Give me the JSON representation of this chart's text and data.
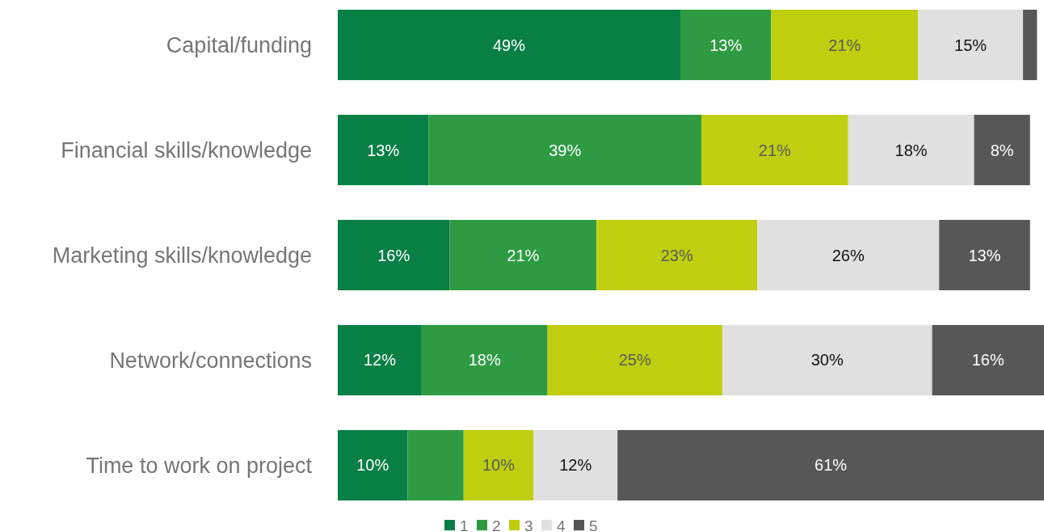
{
  "chart_data": {
    "type": "bar",
    "orientation": "horizontal",
    "stacked": true,
    "legend": "bottom",
    "categories": [
      "Capital/funding",
      "Financial skills/knowledge",
      "Marketing skills/knowledge",
      "Network/connections",
      "Time to work on project"
    ],
    "series": [
      {
        "name": "1",
        "color": "#087f45",
        "values": [
          49,
          13,
          16,
          12,
          10
        ],
        "value_labels": [
          "49%",
          "13%",
          "16%",
          "12%",
          "10%"
        ]
      },
      {
        "name": "2",
        "color": "#2e9b43",
        "values": [
          13,
          39,
          21,
          18,
          8
        ],
        "value_labels": [
          "13%",
          "39%",
          "21%",
          "18%",
          null
        ]
      },
      {
        "name": "3",
        "color": "#bfcf0f",
        "values": [
          21,
          21,
          23,
          25,
          10
        ],
        "value_labels": [
          "21%",
          "21%",
          "23%",
          "25%",
          "10%"
        ]
      },
      {
        "name": "4",
        "color": "#e0e0e0",
        "values": [
          15,
          18,
          26,
          30,
          12
        ],
        "value_labels": [
          "15%",
          "18%",
          "26%",
          "30%",
          "12%"
        ]
      },
      {
        "name": "5",
        "color": "#575757",
        "values": [
          2,
          8,
          13,
          16,
          61
        ],
        "value_labels": [
          null,
          "8%",
          "13%",
          "16%",
          "61%"
        ]
      }
    ]
  }
}
